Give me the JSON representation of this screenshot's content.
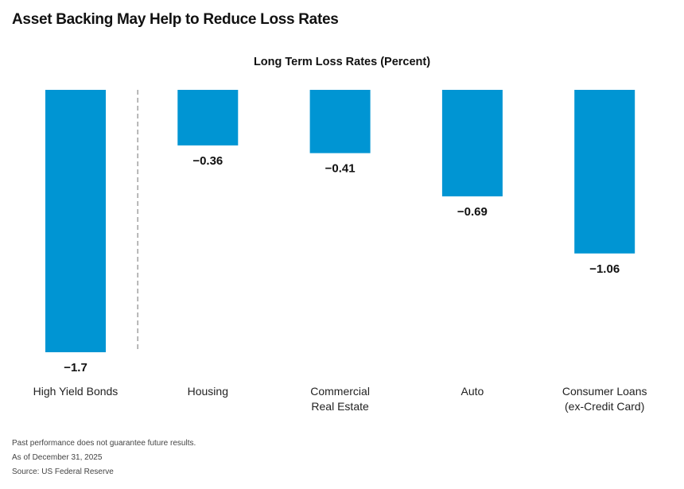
{
  "page": {
    "title": "Asset Backing May Help to Reduce Loss Rates"
  },
  "chart_data": {
    "type": "bar",
    "title": "Long Term Loss Rates (Percent)",
    "categories": [
      [
        "High Yield Bonds"
      ],
      [
        "Housing"
      ],
      [
        "Commercial",
        "Real Estate"
      ],
      [
        "Auto"
      ],
      [
        "Consumer Loans",
        "(ex-Credit Card)"
      ]
    ],
    "values": [
      -1.7,
      -0.36,
      -0.41,
      -0.69,
      -1.06
    ],
    "value_labels": [
      "−1.7",
      "−0.36",
      "−0.41",
      "−0.69",
      "−1.06"
    ],
    "ylim": [
      -1.7,
      0
    ],
    "bar_color": "#0095d3",
    "separator_after_index": 0,
    "grid": false
  },
  "footnotes": [
    "Past performance does not guarantee future results.",
    "As of December 31, 2025",
    "Source: US Federal Reserve"
  ]
}
